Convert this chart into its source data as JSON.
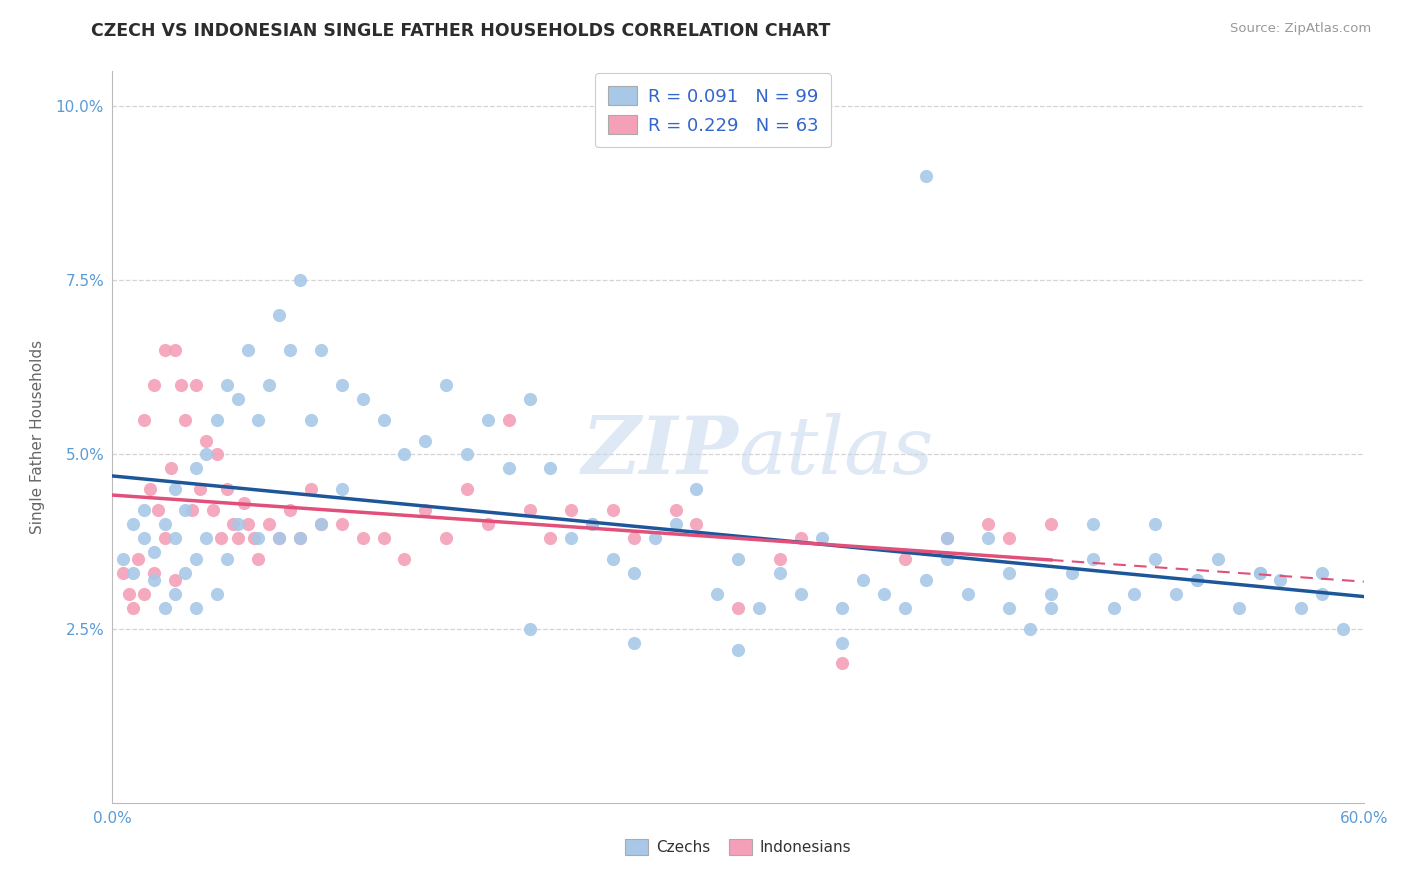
{
  "title": "CZECH VS INDONESIAN SINGLE FATHER HOUSEHOLDS CORRELATION CHART",
  "source_text": "Source: ZipAtlas.com",
  "ylabel": "Single Father Households",
  "xlim": [
    0.0,
    0.6
  ],
  "ylim": [
    0.0,
    0.105
  ],
  "xticks": [
    0.0,
    0.1,
    0.2,
    0.3,
    0.4,
    0.5,
    0.6
  ],
  "xticklabels": [
    "0.0%",
    "",
    "",
    "",
    "",
    "",
    "60.0%"
  ],
  "yticks": [
    0.025,
    0.05,
    0.075,
    0.1
  ],
  "yticklabels": [
    "2.5%",
    "5.0%",
    "7.5%",
    "10.0%"
  ],
  "czech_color": "#a8c8e8",
  "indonesian_color": "#f4a0b8",
  "czech_line_color": "#1e5799",
  "indonesian_line_color": "#e0507a",
  "legend_text_color": "#3366cc",
  "watermark_color": "#c5d8ed",
  "background_color": "#ffffff",
  "grid_color": "#d0d0d0",
  "title_color": "#2c2c2c",
  "axis_label_color": "#666666",
  "tick_color": "#5b9bd5",
  "czech_x": [
    0.005,
    0.01,
    0.01,
    0.015,
    0.015,
    0.02,
    0.02,
    0.025,
    0.025,
    0.03,
    0.03,
    0.03,
    0.035,
    0.035,
    0.04,
    0.04,
    0.04,
    0.045,
    0.045,
    0.05,
    0.05,
    0.055,
    0.055,
    0.06,
    0.06,
    0.065,
    0.07,
    0.07,
    0.075,
    0.08,
    0.08,
    0.085,
    0.09,
    0.09,
    0.095,
    0.1,
    0.1,
    0.11,
    0.11,
    0.12,
    0.13,
    0.14,
    0.15,
    0.16,
    0.17,
    0.18,
    0.19,
    0.2,
    0.21,
    0.22,
    0.23,
    0.24,
    0.25,
    0.26,
    0.27,
    0.28,
    0.29,
    0.3,
    0.31,
    0.32,
    0.33,
    0.34,
    0.35,
    0.36,
    0.37,
    0.38,
    0.39,
    0.4,
    0.41,
    0.42,
    0.43,
    0.44,
    0.45,
    0.46,
    0.47,
    0.48,
    0.49,
    0.5,
    0.51,
    0.52,
    0.53,
    0.54,
    0.55,
    0.56,
    0.57,
    0.58,
    0.59,
    0.39,
    0.2,
    0.25,
    0.3,
    0.35,
    0.4,
    0.45,
    0.5,
    0.55,
    0.58,
    0.52,
    0.47,
    0.43
  ],
  "czech_y": [
    0.035,
    0.033,
    0.04,
    0.038,
    0.042,
    0.036,
    0.032,
    0.04,
    0.028,
    0.045,
    0.038,
    0.03,
    0.042,
    0.033,
    0.048,
    0.035,
    0.028,
    0.05,
    0.038,
    0.055,
    0.03,
    0.06,
    0.035,
    0.058,
    0.04,
    0.065,
    0.055,
    0.038,
    0.06,
    0.07,
    0.038,
    0.065,
    0.075,
    0.038,
    0.055,
    0.065,
    0.04,
    0.06,
    0.045,
    0.058,
    0.055,
    0.05,
    0.052,
    0.06,
    0.05,
    0.055,
    0.048,
    0.058,
    0.048,
    0.038,
    0.04,
    0.035,
    0.033,
    0.038,
    0.04,
    0.045,
    0.03,
    0.035,
    0.028,
    0.033,
    0.03,
    0.038,
    0.028,
    0.032,
    0.03,
    0.028,
    0.032,
    0.038,
    0.03,
    0.038,
    0.033,
    0.025,
    0.03,
    0.033,
    0.035,
    0.028,
    0.03,
    0.04,
    0.03,
    0.032,
    0.035,
    0.028,
    0.033,
    0.032,
    0.028,
    0.03,
    0.025,
    0.09,
    0.025,
    0.023,
    0.022,
    0.023,
    0.035,
    0.028,
    0.035,
    0.033,
    0.033,
    0.032,
    0.04,
    0.028
  ],
  "indo_x": [
    0.005,
    0.008,
    0.01,
    0.012,
    0.015,
    0.015,
    0.018,
    0.02,
    0.02,
    0.022,
    0.025,
    0.025,
    0.028,
    0.03,
    0.03,
    0.033,
    0.035,
    0.038,
    0.04,
    0.042,
    0.045,
    0.048,
    0.05,
    0.052,
    0.055,
    0.058,
    0.06,
    0.063,
    0.065,
    0.068,
    0.07,
    0.075,
    0.08,
    0.085,
    0.09,
    0.095,
    0.1,
    0.11,
    0.12,
    0.13,
    0.14,
    0.15,
    0.16,
    0.17,
    0.18,
    0.19,
    0.2,
    0.21,
    0.22,
    0.23,
    0.24,
    0.25,
    0.27,
    0.28,
    0.3,
    0.32,
    0.33,
    0.35,
    0.38,
    0.4,
    0.42,
    0.43,
    0.45
  ],
  "indo_y": [
    0.033,
    0.03,
    0.028,
    0.035,
    0.055,
    0.03,
    0.045,
    0.06,
    0.033,
    0.042,
    0.065,
    0.038,
    0.048,
    0.065,
    0.032,
    0.06,
    0.055,
    0.042,
    0.06,
    0.045,
    0.052,
    0.042,
    0.05,
    0.038,
    0.045,
    0.04,
    0.038,
    0.043,
    0.04,
    0.038,
    0.035,
    0.04,
    0.038,
    0.042,
    0.038,
    0.045,
    0.04,
    0.04,
    0.038,
    0.038,
    0.035,
    0.042,
    0.038,
    0.045,
    0.04,
    0.055,
    0.042,
    0.038,
    0.042,
    0.04,
    0.042,
    0.038,
    0.042,
    0.04,
    0.028,
    0.035,
    0.038,
    0.02,
    0.035,
    0.038,
    0.04,
    0.038,
    0.04
  ]
}
